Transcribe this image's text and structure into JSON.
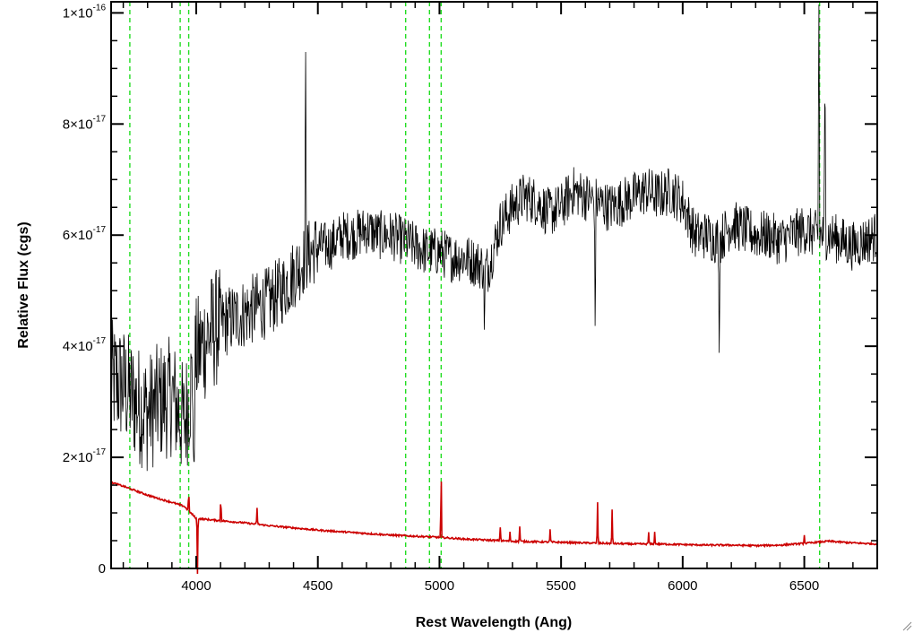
{
  "chart_data": {
    "type": "line",
    "xlabel": "Rest Wavelength (Ang)",
    "ylabel": "Relative Flux (cgs)",
    "xlim": [
      3650,
      6800
    ],
    "ylim": [
      0,
      1.02e-16
    ],
    "x_ticks": [
      4000,
      4500,
      5000,
      5500,
      6000,
      6500
    ],
    "x_tick_labels": [
      "4000",
      "4500",
      "5000",
      "5500",
      "6000",
      "6500"
    ],
    "y_ticks": [
      0,
      2e-17,
      4e-17,
      6e-17,
      8e-17,
      1e-16
    ],
    "y_tick_labels": [
      {
        "mantissa": "0",
        "exponent": ""
      },
      {
        "mantissa": "2×10",
        "exponent": "-17"
      },
      {
        "mantissa": "4×10",
        "exponent": "-17"
      },
      {
        "mantissa": "6×10",
        "exponent": "-17"
      },
      {
        "mantissa": "8×10",
        "exponent": "-17"
      },
      {
        "mantissa": "1×10",
        "exponent": "-16"
      }
    ],
    "grid": false,
    "vertical_markers": [
      3727,
      3934,
      3969,
      4861,
      4959,
      5007,
      6563
    ],
    "series": [
      {
        "color": "#000000",
        "x": [
          3650,
          3700,
          3750,
          3800,
          3850,
          3900,
          3950,
          4000,
          4050,
          4100,
          4150,
          4200,
          4250,
          4300,
          4350,
          4400,
          4450,
          4500,
          4550,
          4600,
          4650,
          4700,
          4750,
          4800,
          4850,
          4900,
          4950,
          5000,
          5050,
          5100,
          5150,
          5200,
          5250,
          5300,
          5350,
          5400,
          5450,
          5500,
          5550,
          5600,
          5650,
          5700,
          5750,
          5800,
          5850,
          5900,
          5950,
          6000,
          6050,
          6100,
          6150,
          6200,
          6250,
          6300,
          6350,
          6400,
          6450,
          6500,
          6550,
          6600,
          6650,
          6700,
          6750,
          6800
        ],
        "values": [
          3.4e-17,
          3.3e-17,
          3e-17,
          2.8e-17,
          3e-17,
          3.1e-17,
          2.6e-17,
          3.8e-17,
          4.2e-17,
          4.4e-17,
          4.5e-17,
          4.6e-17,
          4.7e-17,
          4.8e-17,
          5e-17,
          5.3e-17,
          5.6e-17,
          5.8e-17,
          5.8e-17,
          6e-17,
          6e-17,
          6.1e-17,
          6e-17,
          6e-17,
          5.9e-17,
          5.8e-17,
          5.7e-17,
          5.7e-17,
          5.6e-17,
          5.6e-17,
          5.5e-17,
          5.4e-17,
          6.2e-17,
          6.5e-17,
          6.7e-17,
          6.6e-17,
          6.4e-17,
          6.5e-17,
          6.8e-17,
          6.7e-17,
          6.6e-17,
          6.5e-17,
          6.6e-17,
          6.7e-17,
          6.8e-17,
          6.7e-17,
          6.8e-17,
          6.6e-17,
          6e-17,
          6e-17,
          5.9e-17,
          6.2e-17,
          6.1e-17,
          6e-17,
          6e-17,
          5.9e-17,
          6e-17,
          6.1e-17,
          6e-17,
          6e-17,
          5.9e-17,
          5.8e-17,
          5.9e-17,
          6e-17
        ],
        "features": [
          {
            "x": 3990,
            "value": 1e-17
          },
          {
            "x": 4450,
            "value": 8.9e-17
          },
          {
            "x": 5185,
            "value": 4.3e-17
          },
          {
            "x": 5640,
            "value": 4.5e-17
          },
          {
            "x": 6150,
            "value": 4.2e-17
          },
          {
            "x": 6560,
            "value": 1.02e-16
          },
          {
            "x": 6585,
            "value": 8.8e-17
          }
        ]
      },
      {
        "color": "#cc0000",
        "x": [
          3650,
          3700,
          3750,
          3800,
          3850,
          3900,
          3950,
          4000,
          4100,
          4200,
          4300,
          4400,
          4500,
          4600,
          4700,
          4800,
          4900,
          5000,
          5100,
          5200,
          5300,
          5400,
          5500,
          5600,
          5700,
          5800,
          5900,
          6000,
          6100,
          6200,
          6300,
          6400,
          6500,
          6600,
          6700,
          6800
        ],
        "values": [
          1.55e-17,
          1.48e-17,
          1.4e-17,
          1.32e-17,
          1.25e-17,
          1.19e-17,
          1.12e-17,
          9e-18,
          8.6e-18,
          8.2e-18,
          7.7e-18,
          7.3e-18,
          6.9e-18,
          6.6e-18,
          6.3e-18,
          6e-18,
          5.8e-18,
          5.6e-18,
          5.3e-18,
          5.1e-18,
          4.9e-18,
          4.8e-18,
          4.7e-18,
          4.6e-18,
          4.5e-18,
          4.4e-18,
          4.4e-18,
          4.3e-18,
          4.2e-18,
          4.2e-18,
          4.1e-18,
          4.2e-18,
          4.5e-18,
          4.9e-18,
          4.6e-18,
          4.4e-18
        ],
        "features": [
          {
            "x": 3969,
            "value": 1.4e-17
          },
          {
            "x": 4005,
            "value": -1e-18
          },
          {
            "x": 4101,
            "value": 1.3e-17
          },
          {
            "x": 4250,
            "value": 1.1e-17
          },
          {
            "x": 5007,
            "value": 1.75e-17
          },
          {
            "x": 5250,
            "value": 7.5e-18
          },
          {
            "x": 5290,
            "value": 6.5e-18
          },
          {
            "x": 5330,
            "value": 7.5e-18
          },
          {
            "x": 5455,
            "value": 7e-18
          },
          {
            "x": 5650,
            "value": 1.2e-17
          },
          {
            "x": 5710,
            "value": 1.05e-17
          },
          {
            "x": 5860,
            "value": 6.5e-18
          },
          {
            "x": 5885,
            "value": 6.5e-18
          },
          {
            "x": 6500,
            "value": 6e-18
          }
        ]
      }
    ]
  }
}
